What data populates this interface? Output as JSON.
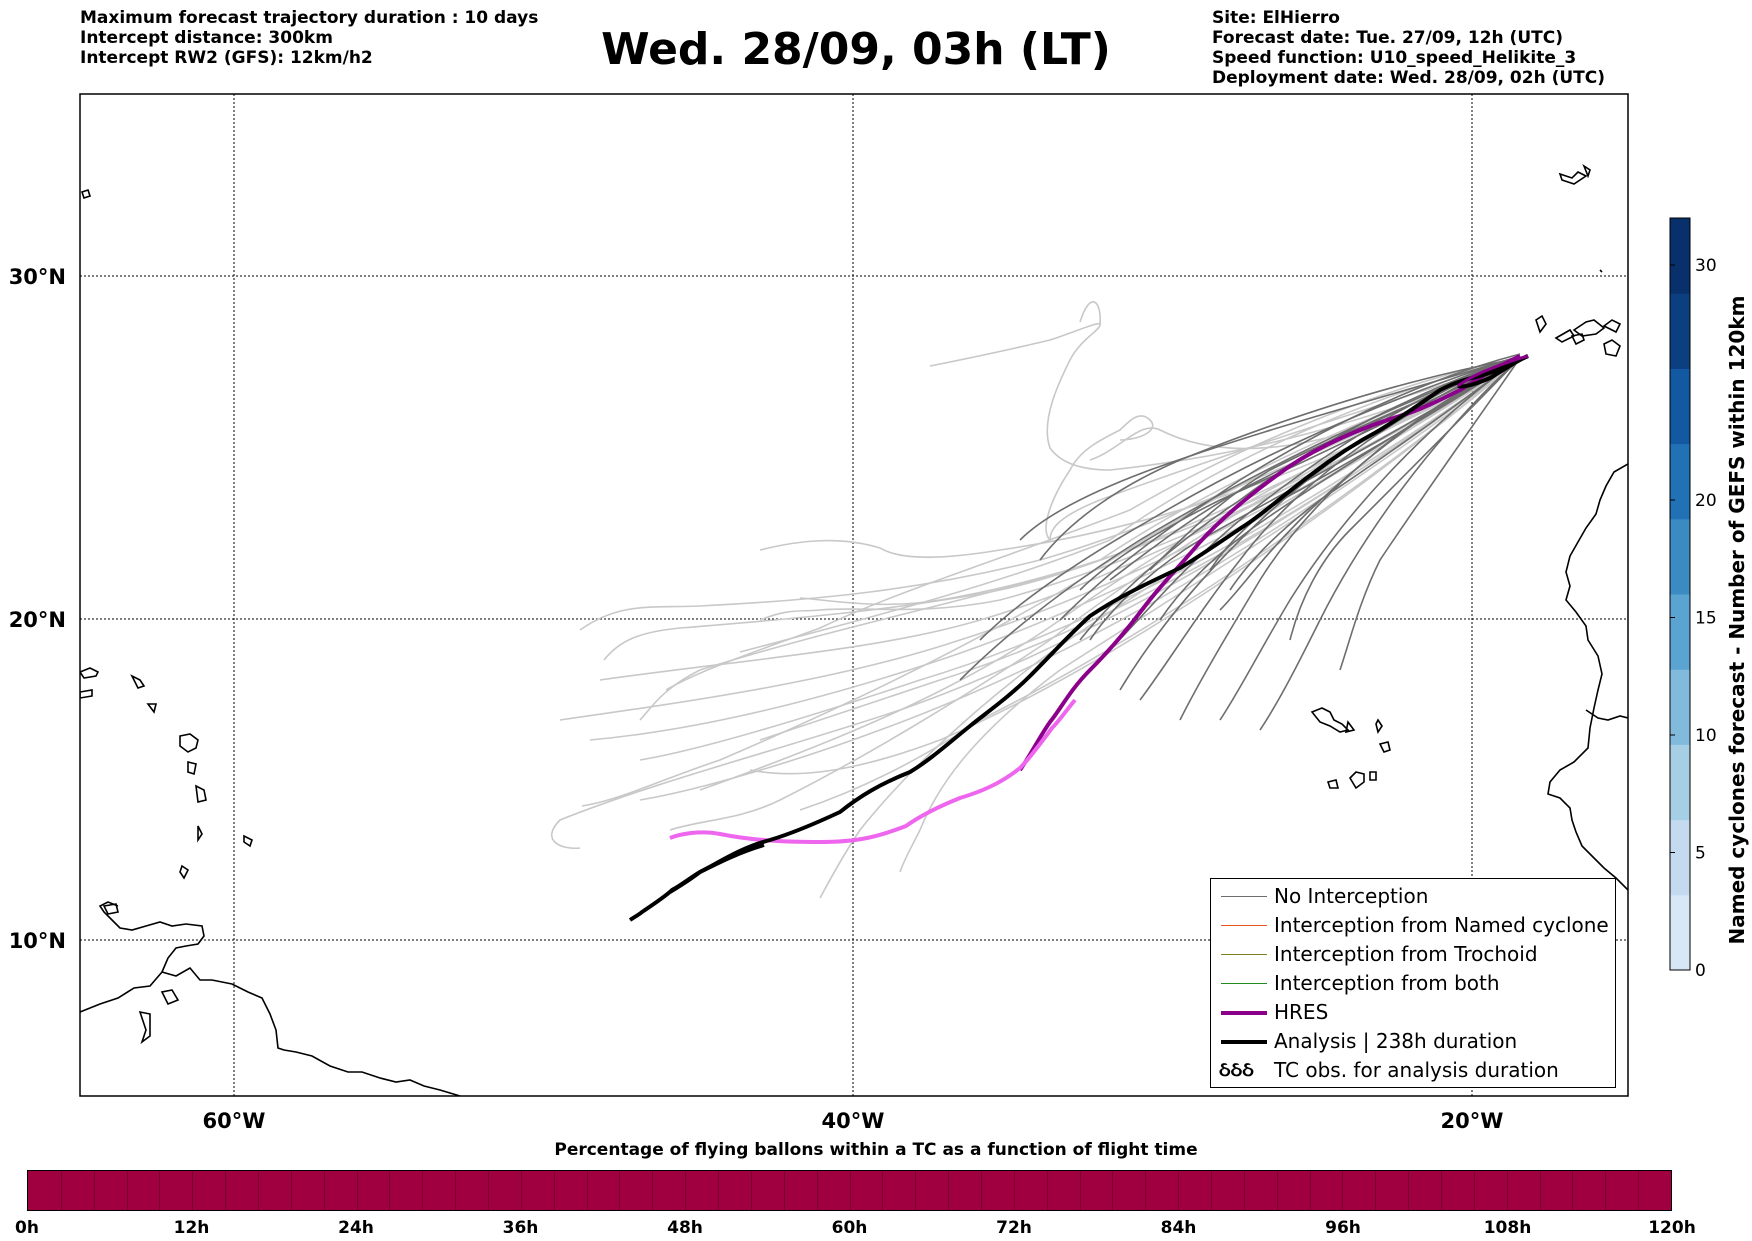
{
  "header": {
    "left_lines": [
      "Maximum forecast trajectory duration : 10 days",
      "Intercept distance: 300km",
      "Intercept RW2 (GFS):  12km/h2"
    ],
    "title": "Wed. 28/09, 03h (LT)",
    "right_lines": [
      "Site: ElHierro",
      "Forecast date: Tue. 27/09, 12h (UTC)",
      "Speed function: U10_speed_Helikite_3",
      "Deployment date: Wed. 28/09, 02h (UTC)"
    ]
  },
  "map": {
    "lon_labels": [
      "60°W",
      "40°W",
      "20°W"
    ],
    "lat_labels": [
      "30°N",
      "20°N",
      "10°N"
    ]
  },
  "colorbar_right": {
    "title": "Named cyclones forecast - Number of GEFS within 120km",
    "ticks": [
      "0",
      "5",
      "10",
      "15",
      "20",
      "30"
    ],
    "colors": [
      "#d8e7f5",
      "#c4daee",
      "#a6cee4",
      "#82badb",
      "#5ba3d0",
      "#3b8bc2",
      "#2171b5",
      "#1259a2",
      "#0b3f80",
      "#08306b"
    ]
  },
  "legend": {
    "items": [
      {
        "label": "No Interception",
        "color": "#6e6e6e"
      },
      {
        "label": "Interception from Named cyclone",
        "color": "#e8541e"
      },
      {
        "label": "Interception from Trochoid",
        "color": "#808020"
      },
      {
        "label": "Interception from both",
        "color": "#228b22"
      },
      {
        "label": "HRES",
        "color": "#8b008b"
      },
      {
        "label": "Analysis | 238h duration",
        "color": "#000000"
      },
      {
        "label": "TC obs. for analysis duration",
        "color": "#000000",
        "symbol": "ઠઠઠ"
      }
    ]
  },
  "colorbar_bottom": {
    "title": "Percentage of flying ballons within a TC as a function of flight time",
    "ticks": [
      "0h",
      "12h",
      "24h",
      "36h",
      "48h",
      "60h",
      "72h",
      "84h",
      "96h",
      "108h",
      "120h"
    ],
    "color": "#a0003f"
  },
  "colors": {
    "ensemble_gray": "#6e6e6e",
    "ensemble_light": "#c8c8c8",
    "hres": "#8b008b",
    "hres_light": "#ee66ee",
    "analysis": "#000000"
  }
}
